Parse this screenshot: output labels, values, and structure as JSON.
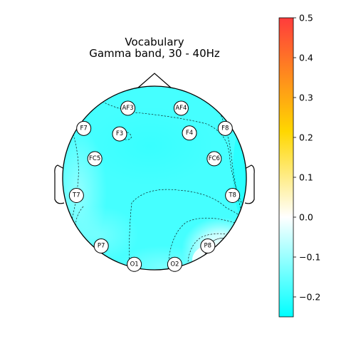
{
  "chart_data": {
    "type": "heatmap",
    "subtype": "eeg-topomap",
    "title": "Vocabulary",
    "subtitle": "Gamma band, 30 - 40Hz",
    "electrodes": [
      {
        "name": "AF3",
        "x": -0.29,
        "y": 0.76
      },
      {
        "name": "AF4",
        "x": 0.29,
        "y": 0.76
      },
      {
        "name": "F7",
        "x": -0.77,
        "y": 0.54
      },
      {
        "name": "F3",
        "x": -0.38,
        "y": 0.48
      },
      {
        "name": "F4",
        "x": 0.38,
        "y": 0.49
      },
      {
        "name": "F8",
        "x": 0.77,
        "y": 0.54
      },
      {
        "name": "FC5",
        "x": -0.65,
        "y": 0.21
      },
      {
        "name": "FC6",
        "x": 0.65,
        "y": 0.21
      },
      {
        "name": "T7",
        "x": -0.85,
        "y": -0.19
      },
      {
        "name": "T8",
        "x": 0.85,
        "y": -0.19
      },
      {
        "name": "P7",
        "x": -0.58,
        "y": -0.74
      },
      {
        "name": "P8",
        "x": 0.58,
        "y": -0.74
      },
      {
        "name": "O1",
        "x": -0.22,
        "y": -0.94
      },
      {
        "name": "O2",
        "x": 0.22,
        "y": -0.94
      }
    ],
    "colorbar": {
      "min": -0.25,
      "max": 0.5,
      "ticks": [
        -0.2,
        -0.1,
        0.0,
        0.1,
        0.2,
        0.3,
        0.4,
        0.5
      ],
      "tick_labels": [
        "−0.2",
        "−0.1",
        "0.0",
        "0.1",
        "0.2",
        "0.3",
        "0.4",
        "0.5"
      ],
      "colors": [
        "#00ffff",
        "#ffffff",
        "#ffd700",
        "#ff3c3c"
      ]
    }
  }
}
